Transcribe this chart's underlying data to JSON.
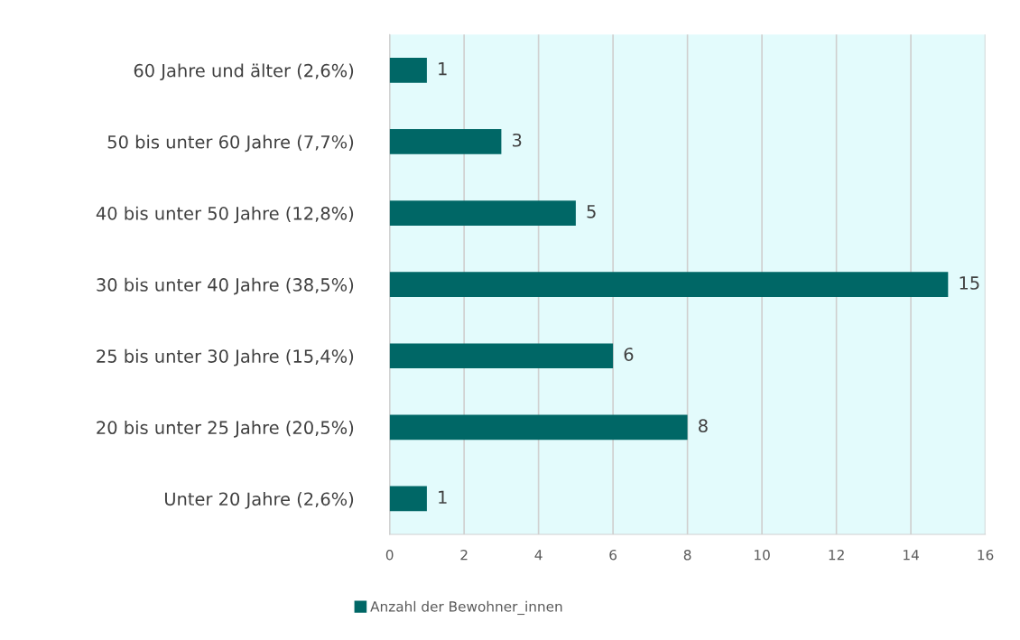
{
  "chart_data": {
    "type": "bar",
    "orientation": "horizontal",
    "categories": [
      "60 Jahre und älter (2,6%)",
      "50 bis unter 60 Jahre (7,7%)",
      "40 bis unter 50 Jahre (12,8%)",
      "30 bis unter 40 Jahre (38,5%)",
      "25 bis unter 30 Jahre (15,4%)",
      "20 bis unter 25 Jahre (20,5%)",
      "Unter 20 Jahre (2,6%)"
    ],
    "series": [
      {
        "name": "Anzahl der Bewohner_innen",
        "color": "#006766",
        "values": [
          1,
          3,
          5,
          15,
          6,
          8,
          1
        ]
      }
    ],
    "xlim": [
      0,
      16
    ],
    "xticks": [
      0,
      2,
      4,
      6,
      8,
      10,
      12,
      14,
      16
    ],
    "grid": "x",
    "legend": "bottom",
    "data_labels": true
  }
}
